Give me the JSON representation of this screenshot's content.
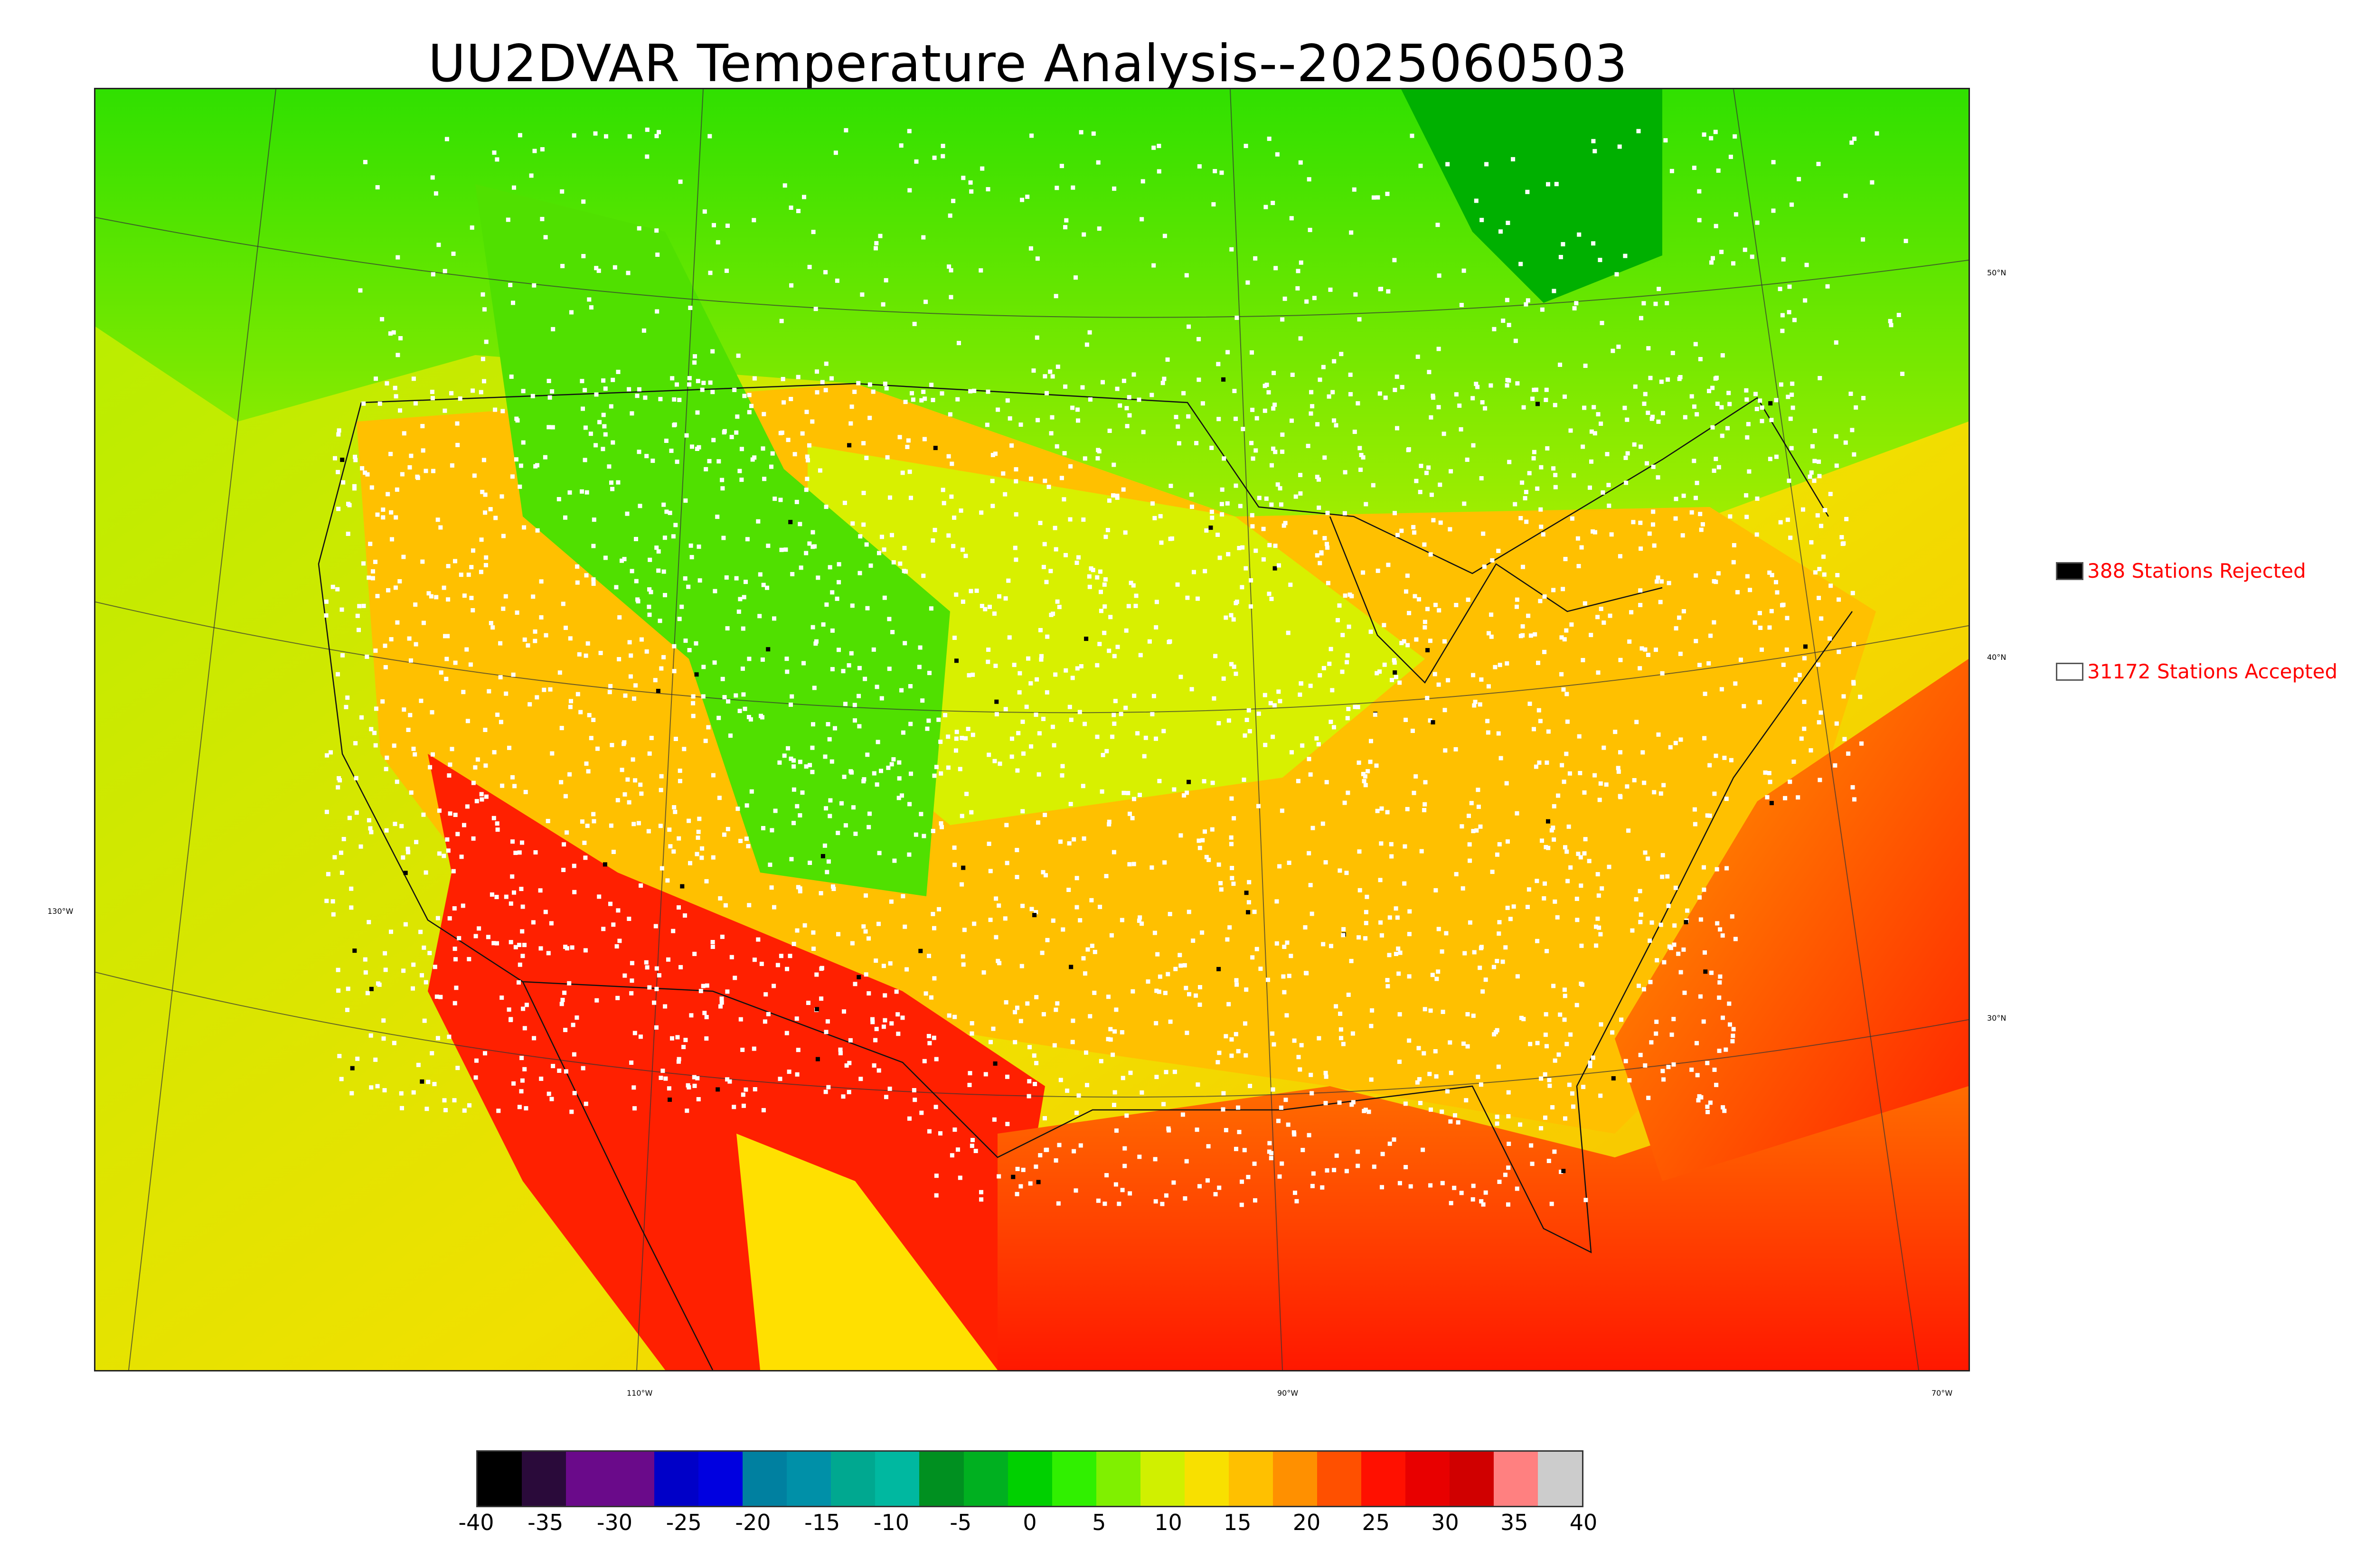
{
  "title": "UU2DVAR Temperature Analysis--2025060503",
  "legend": {
    "rejected": {
      "label": "388 Stations Rejected",
      "swatch_color": "#000000"
    },
    "accepted": {
      "label": "31172 Stations Accepted",
      "swatch_color": "#ffffff"
    }
  },
  "map": {
    "lon_labels": [
      "110°W",
      "90°W",
      "70°W",
      "130°W"
    ],
    "lat_labels": [
      "50°N",
      "40°N",
      "30°N"
    ],
    "colors": {
      "cold": "#00e000",
      "mild": "#c8f000",
      "warm": "#ffb000",
      "hot": "#ff1000",
      "station_accepted": "#ffffff",
      "station_rejected": "#000000"
    }
  },
  "colorbar": {
    "ticks": [
      "-40",
      "-35",
      "-30",
      "-25",
      "-20",
      "-15",
      "-10",
      "-5",
      "0",
      "5",
      "10",
      "15",
      "20",
      "25",
      "30",
      "35",
      "40"
    ],
    "colors": [
      "#000000",
      "#2a0a3a",
      "#6a0a8a",
      "#6a0a8a",
      "#0000c8",
      "#0000e0",
      "#0080a0",
      "#0090a8",
      "#00a890",
      "#00b8a0",
      "#009020",
      "#00b020",
      "#00d000",
      "#30f000",
      "#80f000",
      "#d0f000",
      "#f8e000",
      "#ffc000",
      "#ff9000",
      "#ff5000",
      "#ff1000",
      "#e80000",
      "#d00000",
      "#ff8080",
      "#cccccc"
    ]
  }
}
